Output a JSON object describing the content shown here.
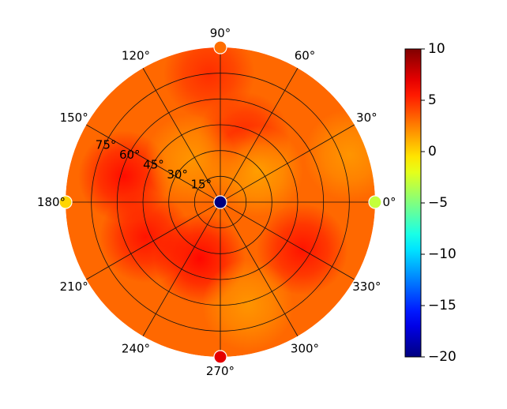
{
  "chart_data": {
    "type": "heatmap",
    "projection": "polar",
    "title": "",
    "grid": true,
    "theta_ticks": [
      {
        "deg": 0,
        "label": "0°"
      },
      {
        "deg": 30,
        "label": "30°"
      },
      {
        "deg": 60,
        "label": "60°"
      },
      {
        "deg": 90,
        "label": "90°"
      },
      {
        "deg": 120,
        "label": "120°"
      },
      {
        "deg": 150,
        "label": "150°"
      },
      {
        "deg": 180,
        "label": "180°"
      },
      {
        "deg": 210,
        "label": "210°"
      },
      {
        "deg": 240,
        "label": "240°"
      },
      {
        "deg": 270,
        "label": "270°"
      },
      {
        "deg": 300,
        "label": "300°"
      },
      {
        "deg": 330,
        "label": "330°"
      }
    ],
    "radial_ticks": [
      {
        "value": 15,
        "label": "15°"
      },
      {
        "value": 30,
        "label": "30°"
      },
      {
        "value": 45,
        "label": "45°"
      },
      {
        "value": 60,
        "label": "60°"
      },
      {
        "value": 75,
        "label": "75°"
      }
    ],
    "radial_range": [
      0,
      90
    ],
    "colorbar": {
      "colormap": "jet",
      "range": [
        -20,
        10
      ],
      "ticks": [
        {
          "value": 10,
          "label": "10"
        },
        {
          "value": 5,
          "label": "5"
        },
        {
          "value": 0,
          "label": "0"
        },
        {
          "value": -5,
          "label": "−5"
        },
        {
          "value": -10,
          "label": "−10"
        },
        {
          "value": -15,
          "label": "−15"
        },
        {
          "value": -20,
          "label": "−20"
        }
      ]
    },
    "field": {
      "description_values": "approximate field values (colorbar units) by radius (deg from center) and azimuth",
      "background": 3.2,
      "hotspots": [
        {
          "r": 58,
          "theta": 165,
          "value": 6.0
        },
        {
          "r": 48,
          "theta": 205,
          "value": 5.8
        },
        {
          "r": 35,
          "theta": 250,
          "value": 6.2
        },
        {
          "r": 55,
          "theta": 330,
          "value": 5.8
        },
        {
          "r": 40,
          "theta": 70,
          "value": 5.2
        },
        {
          "r": 75,
          "theta": 95,
          "value": 5.0
        },
        {
          "r": 28,
          "theta": 40,
          "value": 1.5
        },
        {
          "r": 30,
          "theta": 125,
          "value": 1.8
        },
        {
          "r": 62,
          "theta": 285,
          "value": 1.8
        },
        {
          "r": 80,
          "theta": 20,
          "value": 1.8
        }
      ]
    },
    "markers": [
      {
        "r": 0,
        "theta": 0,
        "value": -20
      },
      {
        "r": 90,
        "theta": 0,
        "value": -3
      },
      {
        "r": 90,
        "theta": 90,
        "value": 3
      },
      {
        "r": 90,
        "theta": 180,
        "value": 0
      },
      {
        "r": 90,
        "theta": 270,
        "value": 7
      }
    ]
  }
}
